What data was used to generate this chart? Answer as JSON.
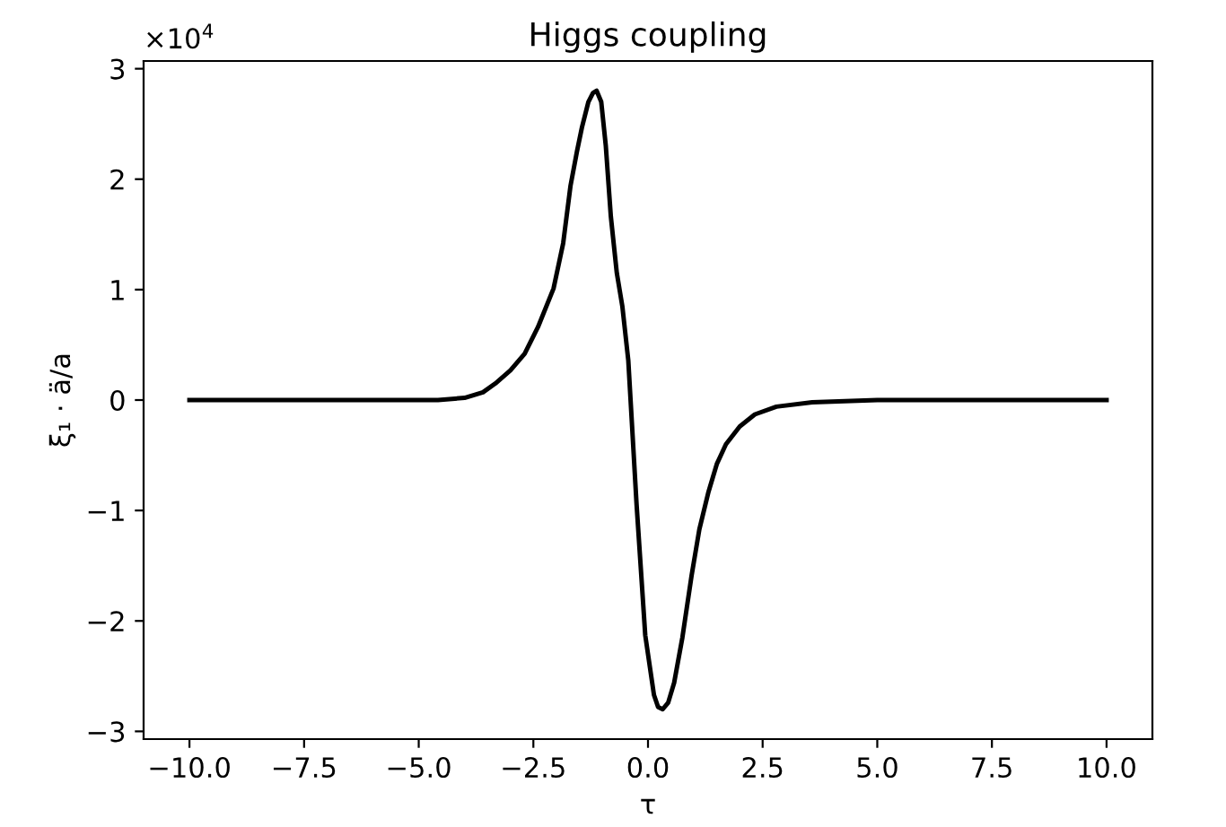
{
  "chart_data": {
    "type": "line",
    "title": "Higgs coupling",
    "xlabel": "τ",
    "ylabel": "ξ₁ · ä/a",
    "annotations": [
      "×10$^{4}$"
    ],
    "series": [
      {
        "color": "#000000",
        "x": [
          -10,
          -8,
          -6,
          -4.58,
          -4,
          -3.6,
          -3.33,
          -3.0,
          -2.69,
          -2.4,
          -2.06,
          -1.85,
          -1.69,
          -1.55,
          -1.44,
          -1.3,
          -1.2,
          -1.12,
          -1.02,
          -0.92,
          -0.81,
          -0.68,
          -0.56,
          -0.43,
          -0.25,
          -0.06,
          0.13,
          0.22,
          0.32,
          0.44,
          0.57,
          0.75,
          0.95,
          1.12,
          1.32,
          1.5,
          1.7,
          2.0,
          2.33,
          2.8,
          3.58,
          5,
          7,
          10
        ],
        "values": [
          0,
          0,
          0,
          0,
          0.02,
          0.07,
          0.15,
          0.27,
          0.42,
          0.66,
          1.01,
          1.42,
          1.94,
          2.25,
          2.47,
          2.7,
          2.78,
          2.8,
          2.7,
          2.3,
          1.66,
          1.15,
          0.85,
          0.36,
          -0.94,
          -2.13,
          -2.67,
          -2.78,
          -2.8,
          -2.74,
          -2.56,
          -2.15,
          -1.59,
          -1.17,
          -0.83,
          -0.58,
          -0.4,
          -0.24,
          -0.13,
          -0.06,
          -0.02,
          0,
          0,
          0
        ]
      }
    ],
    "xlim": [
      -11,
      11
    ],
    "xticks": [
      {
        "value": -10,
        "label": "−10.0"
      },
      {
        "value": -7.5,
        "label": "−7.5"
      },
      {
        "value": -5,
        "label": "−5.0"
      },
      {
        "value": -2.5,
        "label": "−2.5"
      },
      {
        "value": 0,
        "label": "0.0"
      },
      2.5,
      {
        "value": 5,
        "label": "5.0"
      },
      7.5,
      {
        "value": 10,
        "label": "10.0"
      }
    ],
    "ylim": [
      -3.07,
      3.07
    ],
    "yticks": [
      {
        "value": -3,
        "label": "−3"
      },
      {
        "value": -2,
        "label": "−2"
      },
      {
        "value": -1,
        "label": "−1"
      },
      0,
      1,
      2,
      3
    ],
    "grid": false,
    "legend": false,
    "marker": "none",
    "line_style": "solid"
  }
}
